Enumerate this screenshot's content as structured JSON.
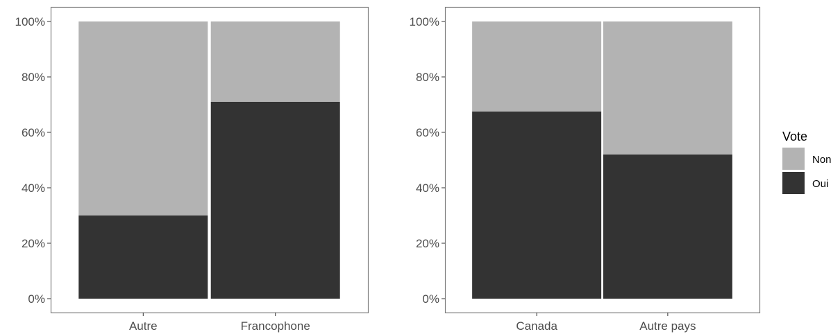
{
  "chart_data": [
    {
      "type": "bar",
      "stacked": "percent",
      "categories": [
        "Autre",
        "Francophone"
      ],
      "series": [
        {
          "name": "Oui",
          "values": [
            0.3,
            0.71
          ]
        },
        {
          "name": "Non",
          "values": [
            0.7,
            0.29
          ]
        }
      ],
      "ylim": [
        0,
        1
      ],
      "yticks": [
        "0%",
        "20%",
        "40%",
        "60%",
        "80%",
        "100%"
      ],
      "grid": false
    },
    {
      "type": "bar",
      "stacked": "percent",
      "categories": [
        "Canada",
        "Autre pays"
      ],
      "series": [
        {
          "name": "Oui",
          "values": [
            0.675,
            0.52
          ]
        },
        {
          "name": "Non",
          "values": [
            0.325,
            0.48
          ]
        }
      ],
      "ylim": [
        0,
        1
      ],
      "yticks": [
        "0%",
        "20%",
        "40%",
        "60%",
        "80%",
        "100%"
      ],
      "grid": false
    }
  ],
  "legend": {
    "title": "Vote",
    "placement": "right",
    "items": [
      {
        "label": "Non",
        "color": "#b3b3b3"
      },
      {
        "label": "Oui",
        "color": "#333333"
      }
    ]
  },
  "colors": {
    "Oui": "#333333",
    "Non": "#b3b3b3",
    "panel_border": "#7f7f7f"
  }
}
